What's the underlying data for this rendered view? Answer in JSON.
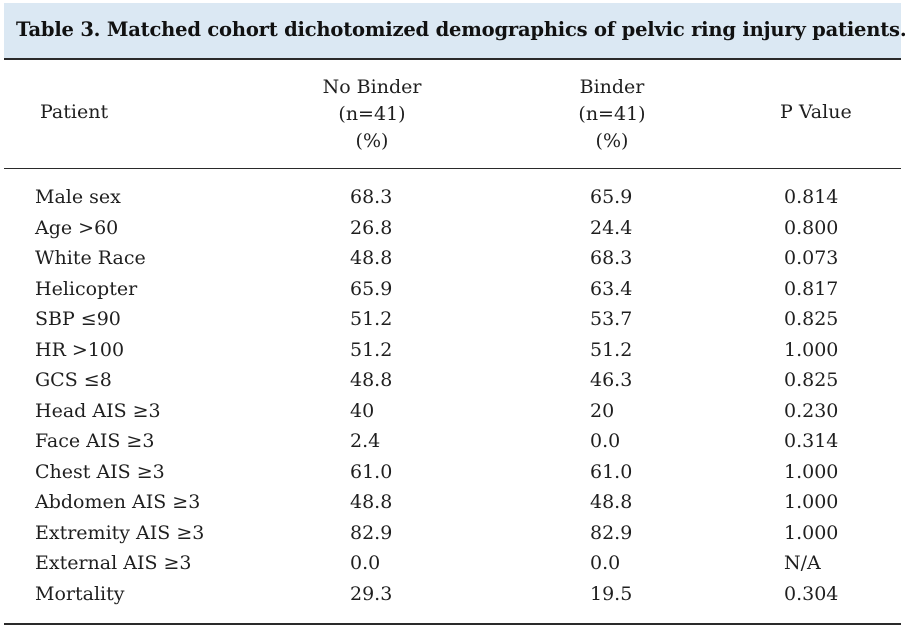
{
  "title": "Table 3. Matched cohort dichotomized demographics of pelvic ring injury patients.",
  "headers": {
    "patient": "Patient",
    "no_binder": [
      "No Binder",
      "(n=41)",
      "(%)"
    ],
    "binder": [
      "Binder",
      "(n=41)",
      "(%)"
    ],
    "p_value": "P Value"
  },
  "rows": [
    {
      "label": "Male sex",
      "no_binder": "68.3",
      "binder": "65.9",
      "p": "0.814"
    },
    {
      "label": "Age >60",
      "no_binder": "26.8",
      "binder": "24.4",
      "p": "0.800"
    },
    {
      "label": "White Race",
      "no_binder": "48.8",
      "binder": "68.3",
      "p": "0.073"
    },
    {
      "label": "Helicopter",
      "no_binder": "65.9",
      "binder": "63.4",
      "p": "0.817"
    },
    {
      "label": "SBP ≤90",
      "no_binder": "51.2",
      "binder": "53.7",
      "p": "0.825"
    },
    {
      "label": "HR >100",
      "no_binder": "51.2",
      "binder": "51.2",
      "p": "1.000"
    },
    {
      "label": "GCS ≤8",
      "no_binder": "48.8",
      "binder": "46.3",
      "p": "0.825"
    },
    {
      "label": "Head AIS ≥3",
      "no_binder": "40",
      "binder": "20",
      "p": "0.230"
    },
    {
      "label": "Face AIS ≥3",
      "no_binder": "2.4",
      "binder": "0.0",
      "p": "0.314"
    },
    {
      "label": "Chest AIS ≥3",
      "no_binder": "61.0",
      "binder": "61.0",
      "p": "1.000"
    },
    {
      "label": "Abdomen AIS ≥3",
      "no_binder": "48.8",
      "binder": "48.8",
      "p": "1.000"
    },
    {
      "label": "Extremity AIS ≥3",
      "no_binder": "82.9",
      "binder": "82.9",
      "p": "1.000"
    },
    {
      "label": "External AIS ≥3",
      "no_binder": "0.0",
      "binder": "0.0",
      "p": "N/A"
    },
    {
      "label": "Mortality",
      "no_binder": "29.3",
      "binder": "19.5",
      "p": "0.304"
    }
  ],
  "colors": {
    "title_background": "#dbe8f3",
    "rule": "#2a2a2a",
    "text": "#1f1f1f"
  }
}
